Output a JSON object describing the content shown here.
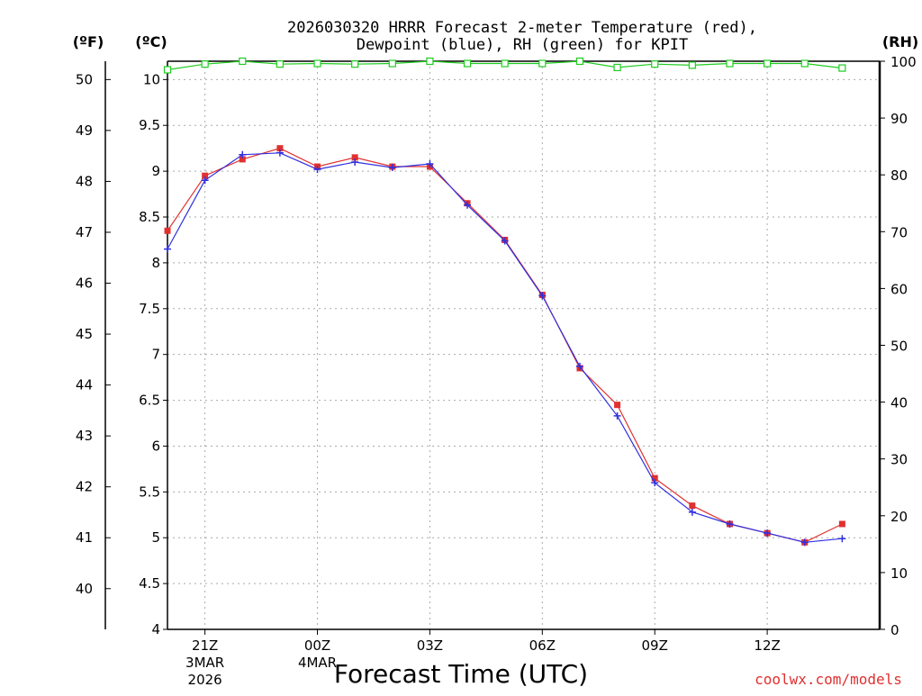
{
  "chart_data": {
    "type": "line",
    "title_line1": "2026030320 HRRR Forecast 2-meter Temperature (red),",
    "title_line2": "Dewpoint (blue), RH (green) for KPIT",
    "unit_f": "(ºF)",
    "unit_c": "(ºC)",
    "unit_rh": "(RH)",
    "xlabel": "Forecast Time (UTC)",
    "source": "coolwx.com/models",
    "x_hours": [
      20,
      21,
      22,
      23,
      24,
      25,
      26,
      27,
      28,
      29,
      30,
      31,
      32,
      33,
      34,
      35,
      36,
      37,
      38,
      39
    ],
    "x_ticks": [
      {
        "h": 21,
        "l1": "21Z",
        "l2": "3MAR",
        "l3": "2026"
      },
      {
        "h": 24,
        "l1": "00Z",
        "l2": "4MAR",
        "l3": ""
      },
      {
        "h": 27,
        "l1": "03Z",
        "l2": "",
        "l3": ""
      },
      {
        "h": 30,
        "l1": "06Z",
        "l2": "",
        "l3": ""
      },
      {
        "h": 33,
        "l1": "09Z",
        "l2": "",
        "l3": ""
      },
      {
        "h": 36,
        "l1": "12Z",
        "l2": "",
        "l3": ""
      }
    ],
    "ylim_c": [
      4,
      10.2
    ],
    "yticks_c": [
      "4",
      "4.5",
      "5",
      "5.5",
      "6",
      "6.5",
      "7",
      "7.5",
      "8",
      "8.5",
      "9",
      "9.5",
      "10"
    ],
    "yticks_f": [
      "40",
      "41",
      "42",
      "43",
      "44",
      "45",
      "46",
      "47",
      "48",
      "49",
      "50"
    ],
    "ylim_rh": [
      0,
      100
    ],
    "yticks_rh": [
      "0",
      "10",
      "20",
      "30",
      "40",
      "50",
      "60",
      "70",
      "80",
      "90",
      "100"
    ],
    "grid": true,
    "series": [
      {
        "name": "Temperature",
        "color": "#e03030",
        "marker": "square",
        "values": [
          8.35,
          8.95,
          9.13,
          9.25,
          9.05,
          9.15,
          9.05,
          9.05,
          8.65,
          8.25,
          7.65,
          6.85,
          6.45,
          5.65,
          5.35,
          5.15,
          5.05,
          4.95,
          5.15,
          null
        ]
      },
      {
        "name": "Dewpoint",
        "color": "#3030e0",
        "marker": "plus",
        "values": [
          8.15,
          8.9,
          9.18,
          9.2,
          9.02,
          9.1,
          9.04,
          9.08,
          8.63,
          8.24,
          7.64,
          6.87,
          6.33,
          5.6,
          5.28,
          5.15,
          5.05,
          4.95,
          4.99,
          null
        ]
      },
      {
        "name": "RH",
        "color": "#20cc20",
        "marker": "open-square",
        "values": [
          98.5,
          99.5,
          100,
          99.5,
          99.6,
          99.5,
          99.6,
          100,
          99.6,
          99.6,
          99.6,
          100,
          98.9,
          99.5,
          99.3,
          99.6,
          99.6,
          99.6,
          98.8,
          null
        ]
      }
    ]
  }
}
